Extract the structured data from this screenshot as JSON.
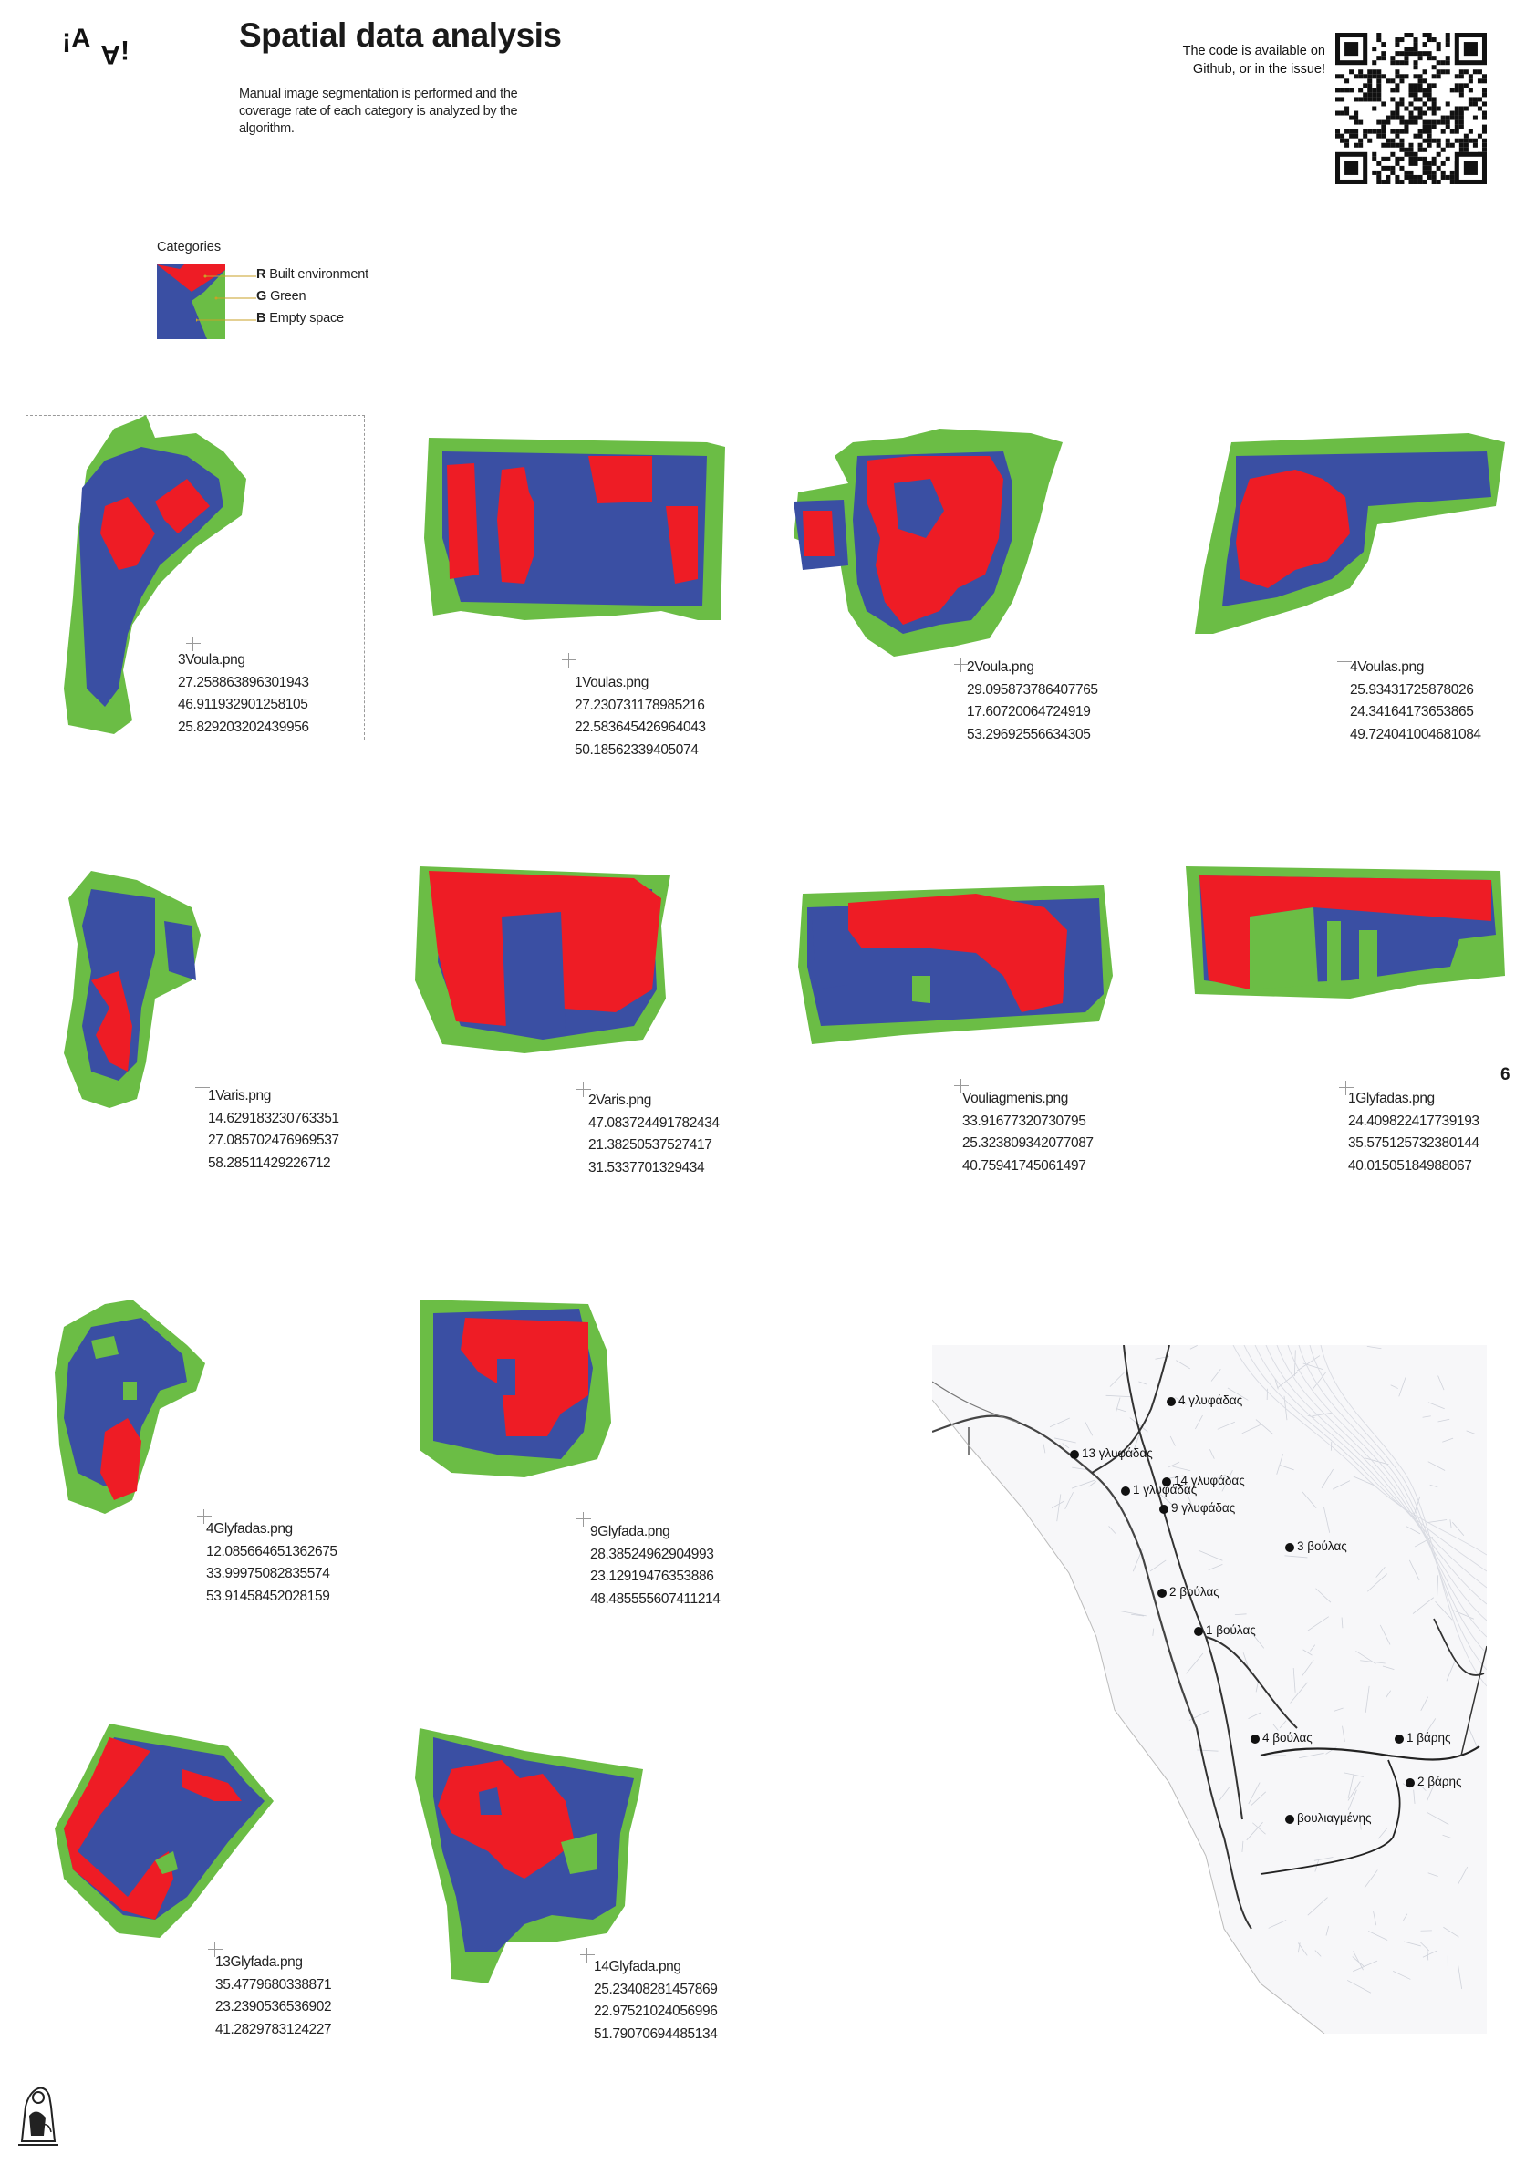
{
  "header": {
    "logo_text": "¡A",
    "title": "Spatial data analysis",
    "subtitle": "Manual image segmentation is performed and the coverage rate of each category is analyzed by the algorithm.",
    "qr_note": "The code is available on Github, or in the issue!"
  },
  "legend": {
    "title": "Categories",
    "items": [
      {
        "key": "R",
        "label": "Built environment"
      },
      {
        "key": "G",
        "label": "Green"
      },
      {
        "key": "B",
        "label": "Empty space"
      }
    ]
  },
  "colors": {
    "red": "#ee1c25",
    "green": "#6bbd45",
    "blue": "#3a4fa3",
    "text": "#222222"
  },
  "cards": [
    {
      "file": "3Voula.png",
      "v1": "27.258863896301943",
      "v2": "46.911932901258105",
      "v3": "25.829203202439956"
    },
    {
      "file": "1Voulas.png",
      "v1": "27.230731178985216",
      "v2": "22.583645426964043",
      "v3": "50.18562339405074"
    },
    {
      "file": "2Voula.png",
      "v1": "29.095873786407765",
      "v2": "17.60720064724919",
      "v3": "53.29692556634305"
    },
    {
      "file": "4Voulas.png",
      "v1": "25.93431725878026",
      "v2": "24.34164173653865",
      "v3": "49.724041004681084"
    },
    {
      "file": "1Varis.png",
      "v1": "14.629183230763351",
      "v2": "27.085702476969537",
      "v3": "58.28511429226712"
    },
    {
      "file": "2Varis.png",
      "v1": "47.083724491782434",
      "v2": "21.38250537527417",
      "v3": "31.5337701329434"
    },
    {
      "file": "Vouliagmenis.png",
      "v1": "33.91677320730795",
      "v2": "25.323809342077087",
      "v3": "40.75941745061497"
    },
    {
      "file": "1Glyfadas.png",
      "v1": "24.409822417739193",
      "v2": "35.575125732380144",
      "v3": "40.01505184988067"
    },
    {
      "file": "4Glyfadas.png",
      "v1": "12.085664651362675",
      "v2": "33.99975082835574",
      "v3": "53.91458452028159"
    },
    {
      "file": "9Glyfada.png",
      "v1": "28.38524962904993",
      "v2": "23.12919476353886",
      "v3": "48.485555607411214"
    },
    {
      "file": "13Glyfada.png",
      "v1": "35.4779680338871",
      "v2": "23.2390536536902",
      "v3": "41.2829783124227"
    },
    {
      "file": "14Glyfada.png",
      "v1": "25.23408281457869",
      "v2": "22.97521024056996",
      "v3": "51.79070694485134"
    }
  ],
  "page_number": "6",
  "map": {
    "labels": [
      "4 γλυφάδας",
      "13 γλυφάδας",
      "14 γλυφάδας",
      "1 γλυφάδας",
      "9 γλυφάδας",
      "3 βούλας",
      "2 βούλας",
      "1 βούλας",
      "4 βούλας",
      "1 βάρης",
      "2 βάρης",
      "βουλιαγμένης"
    ]
  }
}
